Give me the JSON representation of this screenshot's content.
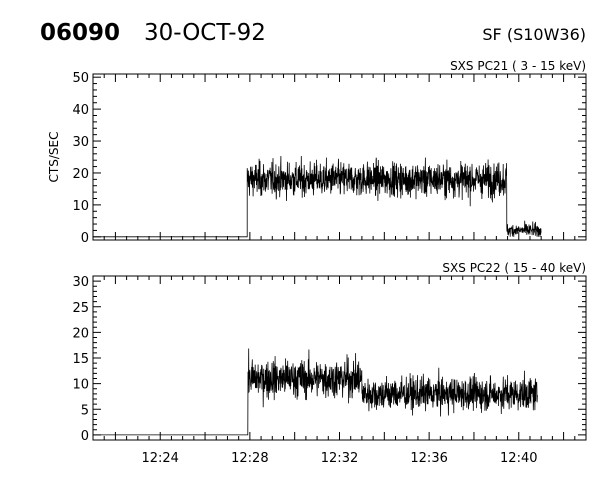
{
  "header": {
    "event_id": "06090",
    "date": "30-OCT-92",
    "location": "SF (S10W36)"
  },
  "chart_data": [
    {
      "type": "line",
      "title": "SXS PC21  (  3 - 15 keV)",
      "ylabel": "CTS/SEC",
      "xlabel": "",
      "xlim": [
        "12:21:00",
        "12:43:00"
      ],
      "ylim": [
        -1,
        51
      ],
      "yticks": [
        0,
        10,
        20,
        30,
        40,
        50
      ],
      "xticks": [],
      "grid": false,
      "series": [
        {
          "segments": [
            {
              "t_start": "12:21:00",
              "t_end": "12:27:53",
              "mean": 0,
              "noise": 0
            },
            {
              "t_start": "12:27:53",
              "t_end": "12:39:28",
              "mean": 18,
              "noise": 5
            },
            {
              "t_start": "12:39:28",
              "t_end": "12:41:00",
              "mean": 2,
              "noise": 2
            }
          ]
        }
      ]
    },
    {
      "type": "line",
      "title": "SXS PC22  ( 15 - 40 keV)",
      "ylabel": "",
      "xlabel": "",
      "xlim": [
        "12:21:00",
        "12:43:00"
      ],
      "ylim": [
        -1,
        31
      ],
      "yticks": [
        0,
        5,
        10,
        15,
        20,
        25,
        30
      ],
      "xticks": [
        "12:24",
        "12:28",
        "12:32",
        "12:36",
        "12:40"
      ],
      "grid": false,
      "series": [
        {
          "segments": [
            {
              "t_start": "12:21:00",
              "t_end": "12:27:55",
              "mean": 0,
              "noise": 0
            },
            {
              "t_start": "12:27:55",
              "t_end": "12:33:00",
              "mean": 11,
              "noise": 3.5
            },
            {
              "t_start": "12:33:00",
              "t_end": "12:40:50",
              "mean": 8,
              "noise": 3
            }
          ]
        }
      ]
    }
  ]
}
